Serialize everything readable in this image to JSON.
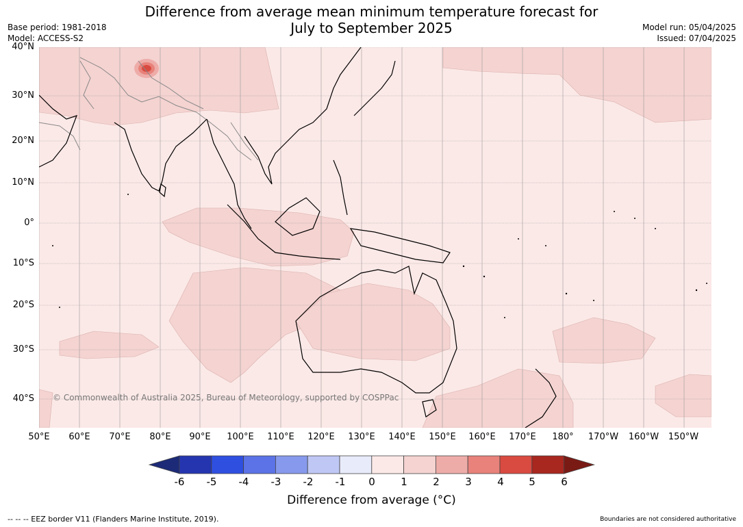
{
  "title": "Difference from average mean minimum temperature forecast for\nJuly to September 2025",
  "title_line1": "Difference from average mean minimum temperature forecast for",
  "title_line2": "July to September 2025",
  "base_period": "Base period: 1981-2018",
  "model": "Model: ACCESS-S2",
  "model_run": "Model run: 05/04/2025",
  "issued": "Issued: 07/04/2025",
  "lat_labels": [
    "40°N",
    "30°N",
    "20°N",
    "10°N",
    "0°",
    "10°S",
    "20°S",
    "30°S",
    "40°S"
  ],
  "lon_labels": [
    "50°E",
    "60°E",
    "70°E",
    "80°E",
    "90°E",
    "100°E",
    "110°E",
    "120°E",
    "130°E",
    "140°E",
    "150°E",
    "160°E",
    "170°E",
    "180°",
    "170°W",
    "160°W",
    "150°W"
  ],
  "copyright": "© Commonwealth of Australia 2025, Bureau of Meteorology, supported by COSPPac",
  "colorbar": {
    "ticks": [
      "-6",
      "-5",
      "-4",
      "-3",
      "-2",
      "-1",
      "0",
      "1",
      "2",
      "3",
      "4",
      "5",
      "6"
    ],
    "colors": [
      "#1c2a78",
      "#2535b0",
      "#2e4fe0",
      "#5b73e6",
      "#8699ec",
      "#bfc7f4",
      "#e8ebfa",
      "#fbe9e7",
      "#f4d3d1",
      "#eeaca8",
      "#e8827b",
      "#d94a40",
      "#a8271f",
      "#7a1a15"
    ],
    "label": "Difference from average (°C)"
  },
  "footer_left": "--  --  -- EEZ border V11 (Flanders Marine Institute, 2019).",
  "footer_right": "Boundaries are not considered authoritative",
  "map_colors": {
    "background": "#fbe9e7",
    "anomaly_1_2": "#f4d3d1",
    "coast": "#000000",
    "border": "#888888"
  }
}
